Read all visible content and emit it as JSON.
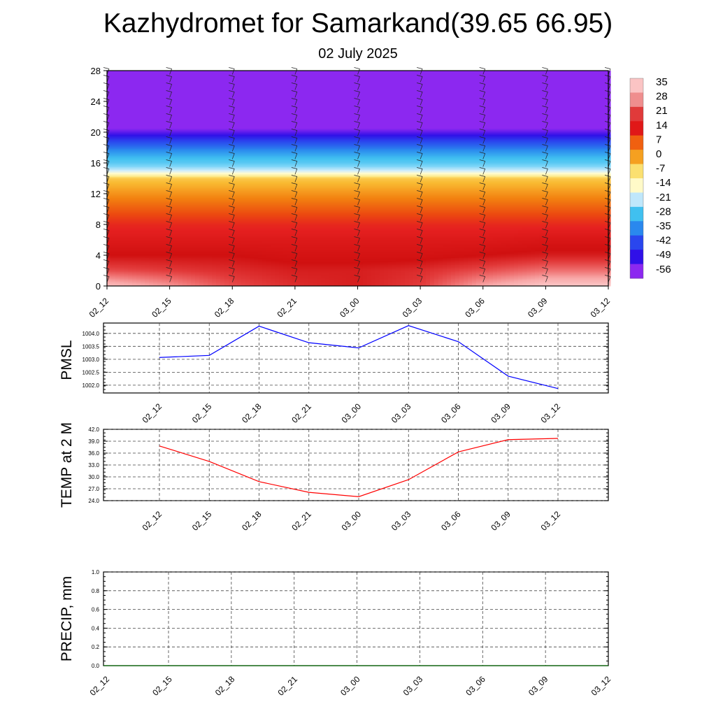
{
  "title": "Kazhydromet for Samarkand(39.65 66.95)",
  "subtitle": "02 July 2025",
  "chart_data": [
    {
      "type": "heatmap",
      "name": "temperature-height section",
      "x": [
        "02_12",
        "02_15",
        "02_18",
        "02_21",
        "03_00",
        "03_03",
        "03_06",
        "03_09",
        "03_12"
      ],
      "y_ticks": [
        0,
        4,
        8,
        12,
        16,
        20,
        24,
        28
      ],
      "ylim": [
        0,
        28
      ],
      "colorbar": {
        "labels": [
          "35",
          "28",
          "21",
          "14",
          "7",
          "0",
          "-7",
          "-14",
          "-21",
          "-28",
          "-35",
          "-42",
          "-49",
          "-56"
        ],
        "colors": [
          "#fbc4c4",
          "#ef8e8e",
          "#e03a3a",
          "#e01818",
          "#f06010",
          "#f5a020",
          "#fbe070",
          "#fffac8",
          "#bfe7fb",
          "#40c0f0",
          "#2a88ee",
          "#2a46ee",
          "#3010e8",
          "#8c28f0"
        ]
      },
      "surface_columns": [
        {
          "x": "02_12",
          "levels": [
            {
              "z": 0,
              "t": 35
            },
            {
              "z": 2,
              "t": 28
            },
            {
              "z": 4,
              "t": 24
            },
            {
              "z": 6,
              "t": 21
            },
            {
              "z": 8,
              "t": 18
            }
          ]
        },
        {
          "x": "02_15",
          "levels": [
            {
              "z": 0,
              "t": 32
            },
            {
              "z": 2,
              "t": 27
            },
            {
              "z": 4,
              "t": 24
            },
            {
              "z": 6,
              "t": 21
            },
            {
              "z": 8,
              "t": 18
            }
          ]
        },
        {
          "x": "02_18",
          "levels": [
            {
              "z": 0,
              "t": 28
            },
            {
              "z": 2,
              "t": 26
            },
            {
              "z": 4,
              "t": 24
            },
            {
              "z": 6,
              "t": 21
            },
            {
              "z": 8,
              "t": 18
            }
          ]
        },
        {
          "x": "02_21",
          "levels": [
            {
              "z": 0,
              "t": 26
            },
            {
              "z": 2,
              "t": 25
            },
            {
              "z": 4,
              "t": 23
            },
            {
              "z": 6,
              "t": 21
            },
            {
              "z": 8,
              "t": 18
            }
          ]
        },
        {
          "x": "03_00",
          "levels": [
            {
              "z": 0,
              "t": 25
            },
            {
              "z": 2,
              "t": 25
            },
            {
              "z": 4,
              "t": 23
            },
            {
              "z": 6,
              "t": 21
            },
            {
              "z": 8,
              "t": 18
            }
          ]
        },
        {
          "x": "03_03",
          "levels": [
            {
              "z": 0,
              "t": 27
            },
            {
              "z": 2,
              "t": 26
            },
            {
              "z": 4,
              "t": 23
            },
            {
              "z": 6,
              "t": 21
            },
            {
              "z": 8,
              "t": 18
            }
          ]
        },
        {
          "x": "03_06",
          "levels": [
            {
              "z": 0,
              "t": 33
            },
            {
              "z": 2,
              "t": 28
            },
            {
              "z": 4,
              "t": 24
            },
            {
              "z": 6,
              "t": 21
            },
            {
              "z": 8,
              "t": 18
            }
          ]
        },
        {
          "x": "03_09",
          "levels": [
            {
              "z": 0,
              "t": 36
            },
            {
              "z": 2,
              "t": 30
            },
            {
              "z": 4,
              "t": 25
            },
            {
              "z": 6,
              "t": 22
            },
            {
              "z": 8,
              "t": 18
            }
          ]
        },
        {
          "x": "03_12",
          "levels": [
            {
              "z": 0,
              "t": 36
            },
            {
              "z": 2,
              "t": 30
            },
            {
              "z": 4,
              "t": 25
            },
            {
              "z": 6,
              "t": 22
            },
            {
              "z": 8,
              "t": 18
            }
          ]
        }
      ],
      "upper_levels": [
        {
          "z": 8,
          "t": 18
        },
        {
          "z": 10,
          "t": 12
        },
        {
          "z": 12,
          "t": 6
        },
        {
          "z": 14,
          "t": 0
        },
        {
          "z": 14.5,
          "t": -10
        },
        {
          "z": 16,
          "t": -30
        },
        {
          "z": 18,
          "t": -44
        },
        {
          "z": 20,
          "t": -54
        },
        {
          "z": 21,
          "t": -58
        },
        {
          "z": 28,
          "t": -60
        }
      ]
    },
    {
      "type": "line",
      "ylabel": "PMSL",
      "x": [
        "02_12",
        "02_15",
        "02_18",
        "02_21",
        "03_00",
        "03_03",
        "03_06",
        "03_09",
        "03_12"
      ],
      "values": [
        1003.07,
        1003.15,
        1004.28,
        1003.64,
        1003.44,
        1004.3,
        1003.68,
        1002.35,
        1001.87
      ],
      "ylim": [
        1001.7,
        1004.4
      ],
      "y_ticks": [
        "1002.0",
        "1002.5",
        "1003.0",
        "1003.5",
        "1004.0"
      ],
      "color": "#0000ff"
    },
    {
      "type": "line",
      "ylabel": "TEMP at 2 M",
      "x": [
        "02_12",
        "02_15",
        "02_18",
        "02_21",
        "03_00",
        "03_03",
        "03_06",
        "03_09",
        "03_12"
      ],
      "values": [
        37.8,
        33.9,
        28.8,
        26.1,
        25.0,
        29.3,
        36.3,
        39.4,
        39.7
      ],
      "ylim": [
        24,
        42
      ],
      "y_ticks": [
        "24.0",
        "27.0",
        "30.0",
        "33.0",
        "36.0",
        "39.0",
        "42.0"
      ],
      "color": "#ff0000"
    },
    {
      "type": "line",
      "ylabel": "PRECIP, mm",
      "x": [
        "02_12",
        "02_15",
        "02_18",
        "02_21",
        "03_00",
        "03_03",
        "03_06",
        "03_09",
        "03_12"
      ],
      "values": [
        0,
        0,
        0,
        0,
        0,
        0,
        0,
        0,
        0
      ],
      "ylim": [
        0,
        1
      ],
      "y_ticks": [
        "0.0",
        "0.2",
        "0.4",
        "0.6",
        "0.8",
        "1.0"
      ],
      "color": "#006400"
    }
  ]
}
